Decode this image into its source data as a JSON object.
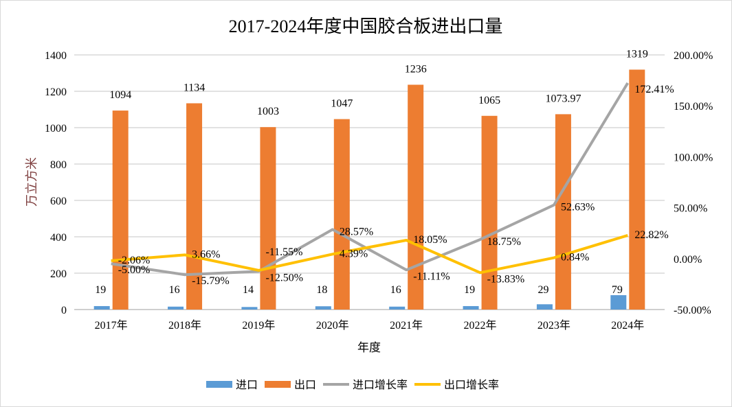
{
  "chart_data": {
    "type": "bar+line",
    "title": "2017-2024年度中国胶合板进出口量",
    "xlabel": "年度",
    "ylabel": "万立方米",
    "categories": [
      "2017年",
      "2018年",
      "2019年",
      "2020年",
      "2021年",
      "2022年",
      "2023年",
      "2024年"
    ],
    "ylim": [
      0,
      1400
    ],
    "yticks": [
      "0",
      "200",
      "400",
      "600",
      "800",
      "1000",
      "1200",
      "1400"
    ],
    "y2lim": [
      -50,
      200
    ],
    "y2ticks": [
      "-50.00%",
      "0.00%",
      "50.00%",
      "100.00%",
      "150.00%",
      "200.00%"
    ],
    "grid": true,
    "legend": "bottom",
    "series": [
      {
        "name": "进口",
        "type": "bar",
        "axis": "left",
        "color": "#5b9bd5",
        "values": [
          19,
          16,
          14,
          18,
          16,
          19,
          29,
          79
        ],
        "labels": [
          "19",
          "16",
          "14",
          "18",
          "16",
          "19",
          "29",
          "79"
        ]
      },
      {
        "name": "出口",
        "type": "bar",
        "axis": "left",
        "color": "#ed7d31",
        "values": [
          1094,
          1134,
          1003,
          1047,
          1236,
          1065,
          1073.97,
          1319
        ],
        "labels": [
          "1094",
          "1134",
          "1003",
          "1047",
          "1236",
          "1065",
          "1073.97",
          "1319"
        ]
      },
      {
        "name": "进口增长率",
        "type": "line",
        "axis": "right",
        "color": "#a5a5a5",
        "values": [
          -5.0,
          -15.79,
          -12.5,
          28.57,
          -11.11,
          18.75,
          52.63,
          172.41
        ],
        "labels": [
          "-5.00%",
          "-15.79%",
          "-12.50%",
          "28.57%",
          "-11.11%",
          "18.75%",
          "52.63%",
          "172.41%"
        ]
      },
      {
        "name": "出口增长率",
        "type": "line",
        "axis": "right",
        "color": "#ffc000",
        "values": [
          -2.06,
          3.66,
          -11.55,
          4.39,
          18.05,
          -13.83,
          0.84,
          22.82
        ],
        "labels": [
          "-2.06%",
          "3.66%",
          "-11.55%",
          "4.39%",
          "18.05%",
          "-13.83%",
          "0.84%",
          "22.82%"
        ]
      }
    ]
  }
}
